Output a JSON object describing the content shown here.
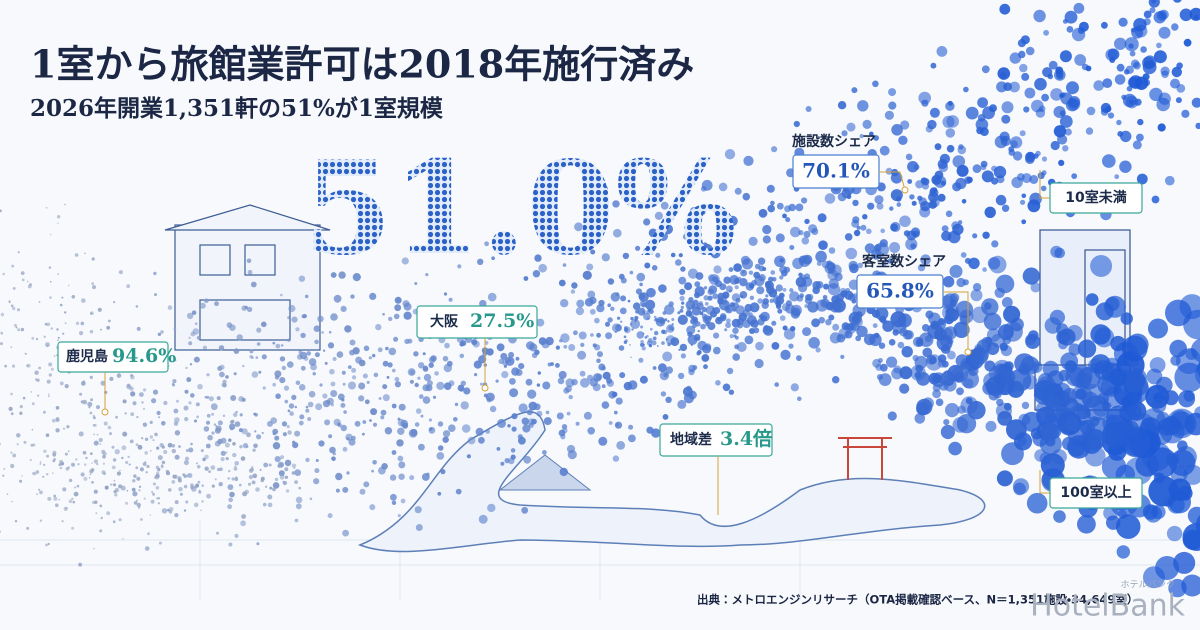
{
  "header": {
    "title": "1室から旅館業許可は2018年施行済み",
    "subtitle": "2026年開業1,351軒の51%が1室規模"
  },
  "headline": "51.0%",
  "callouts": {
    "facility_share": {
      "label": "施設数シェア",
      "value": "70.1%"
    },
    "room_share": {
      "label": "客室数シェア",
      "value": "65.8%"
    },
    "small": {
      "label": "10室未満"
    },
    "large": {
      "label": "100室以上"
    },
    "osaka": {
      "label": "大阪",
      "value": "27.5%"
    },
    "kagoshima": {
      "label": "鹿児島",
      "value": "94.6%"
    },
    "gap": {
      "label": "地域差",
      "value": "3.4倍"
    }
  },
  "source": "出典：メトロエンジンリサーチ（OTA掲載確認ベース、N＝1,351施設・34,649室）",
  "logo": {
    "name": "HotelBank",
    "kana": "ホテルバンク"
  }
}
